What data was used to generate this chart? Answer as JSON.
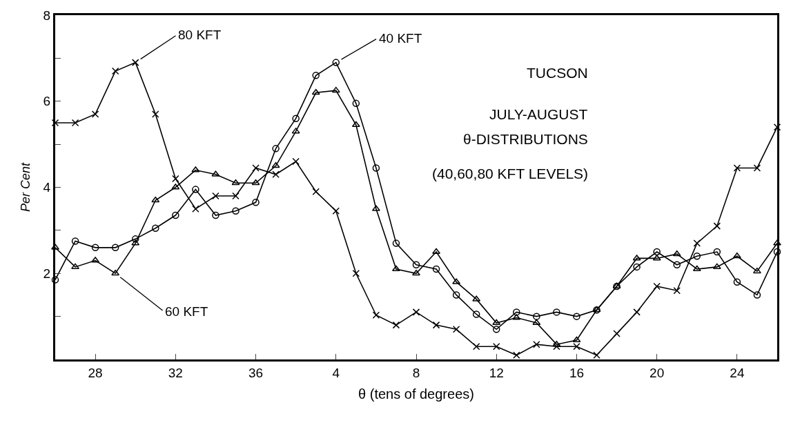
{
  "chart_data": {
    "type": "line",
    "ylabel": "Per Cent",
    "xlabel": "θ (tens of degrees)",
    "categories": [
      null,
      null,
      "28",
      null,
      null,
      null,
      "32",
      null,
      null,
      null,
      "36",
      null,
      null,
      null,
      "4",
      null,
      null,
      null,
      "8",
      null,
      null,
      null,
      "12",
      null,
      null,
      null,
      "16",
      null,
      null,
      null,
      "20",
      null,
      null,
      null,
      "24",
      null,
      null
    ],
    "series": [
      {
        "name": "40 KFT",
        "color": "#000000",
        "marker": "circle",
        "values": [
          1.85,
          2.75,
          2.6,
          2.6,
          2.8,
          3.05,
          3.35,
          3.95,
          3.35,
          3.45,
          3.65,
          4.9,
          5.6,
          6.6,
          6.9,
          5.95,
          4.45,
          2.7,
          2.2,
          2.1,
          1.5,
          1.05,
          0.7,
          1.1,
          1.0,
          1.1,
          1.0,
          1.15,
          1.7,
          2.15,
          2.5,
          2.2,
          2.4,
          2.5,
          1.8,
          1.5,
          2.5
        ]
      },
      {
        "name": "60 KFT",
        "color": "#000000",
        "marker": "triangle",
        "values": [
          2.6,
          2.15,
          2.3,
          2.0,
          2.7,
          3.7,
          4.0,
          4.4,
          4.3,
          4.1,
          4.1,
          4.5,
          5.3,
          6.2,
          6.25,
          5.45,
          3.5,
          2.1,
          2.0,
          2.5,
          1.8,
          1.4,
          0.85,
          0.97,
          0.85,
          0.35,
          0.45,
          1.15,
          1.7,
          2.35,
          2.35,
          2.45,
          2.1,
          2.15,
          2.4,
          2.05,
          2.7
        ]
      },
      {
        "name": "80 KFT",
        "color": "#000000",
        "marker": "cross",
        "values": [
          5.5,
          5.5,
          5.7,
          6.7,
          6.9,
          5.7,
          4.2,
          3.5,
          3.8,
          3.8,
          4.45,
          4.3,
          4.6,
          3.9,
          3.45,
          2.0,
          1.03,
          0.8,
          1.1,
          0.8,
          0.7,
          0.3,
          0.3,
          0.1,
          0.35,
          0.3,
          0.3,
          0.1,
          0.6,
          1.1,
          1.7,
          1.6,
          2.7,
          3.1,
          4.45,
          4.45,
          5.4
        ]
      }
    ],
    "annotations": [
      "TUCSON",
      "JULY-AUGUST",
      "θ-DISTRIBUTIONS",
      "(40,60,80 KFT LEVELS)"
    ],
    "ylim": [
      0,
      8
    ],
    "yticks": [
      {
        "value": 1,
        "label": null
      },
      2,
      {
        "value": 3,
        "label": null
      },
      4,
      {
        "value": 5,
        "label": null
      },
      6,
      {
        "value": 7,
        "label": null
      },
      8
    ]
  }
}
